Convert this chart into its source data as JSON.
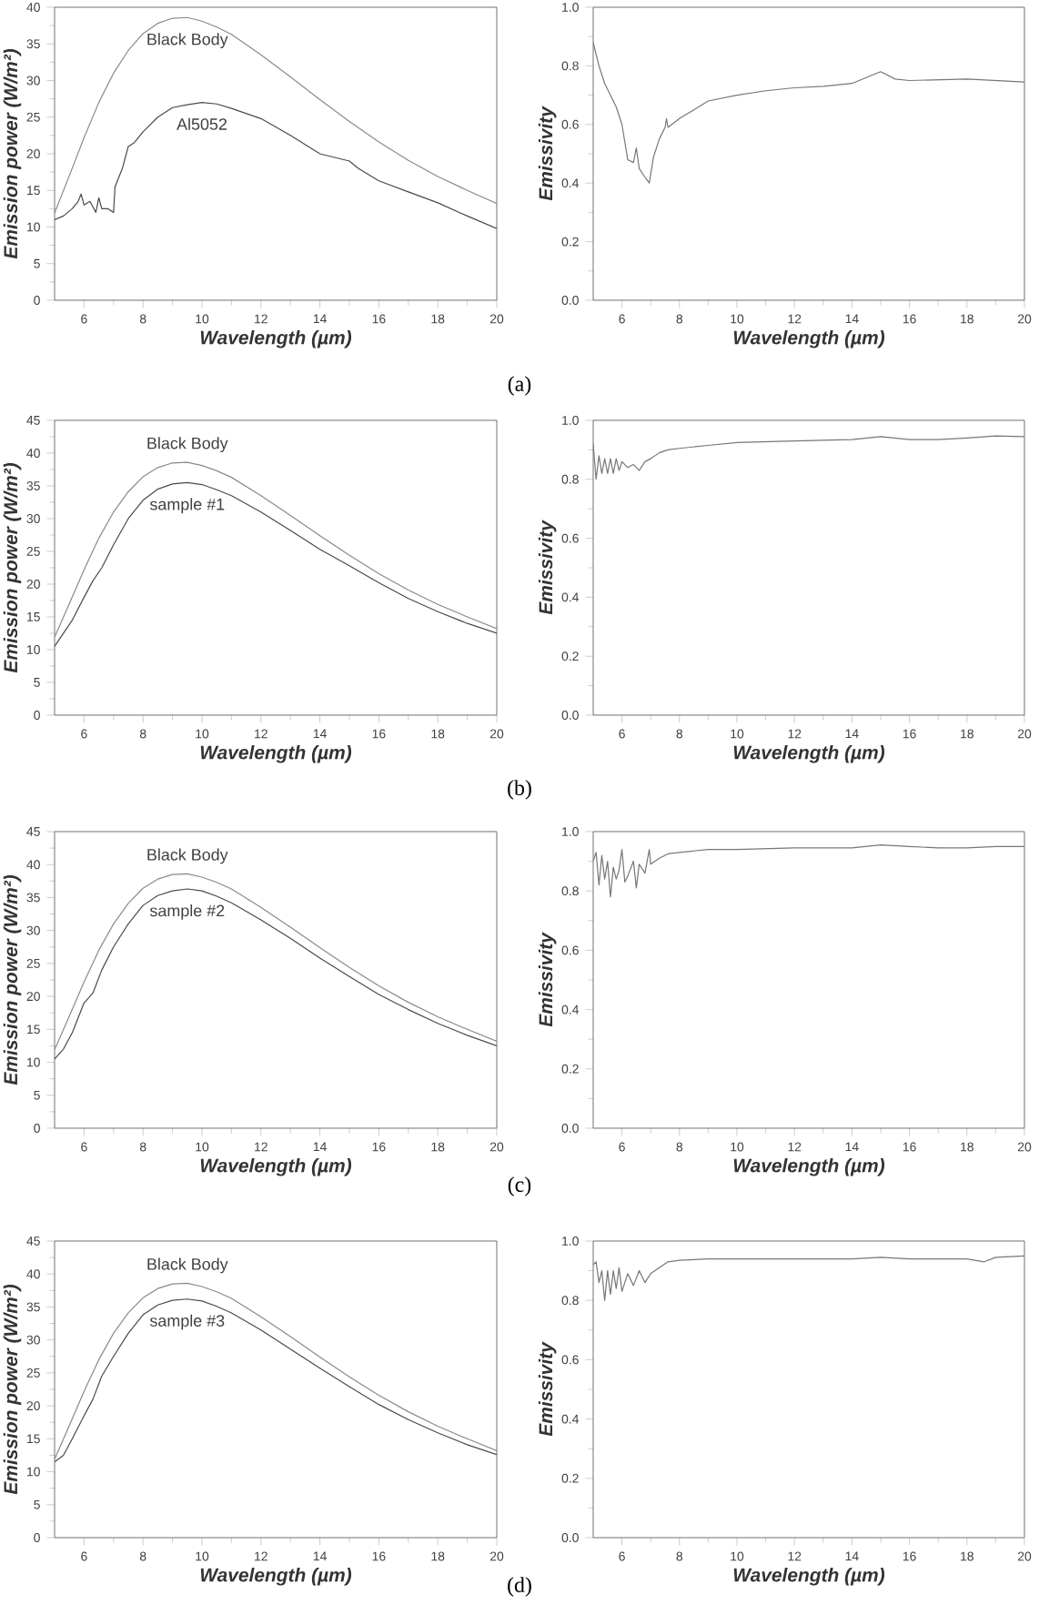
{
  "chart_data": [
    {
      "type": "line",
      "xlabel": "Wavelength (µm)",
      "ylabel": "Emission power (W/m²)",
      "xlim": [
        5,
        20
      ],
      "xticks": [
        6,
        8,
        10,
        12,
        14,
        16,
        18,
        20
      ],
      "ylim": [
        0,
        40
      ],
      "yticks": [
        0,
        5,
        10,
        15,
        20,
        25,
        30,
        35,
        40
      ],
      "annotations": [
        "(a)"
      ],
      "series": [
        {
          "name": "Black Body",
          "color": "#8a8a8a",
          "x": [
            5,
            5.5,
            6,
            6.5,
            7,
            7.5,
            8,
            8.5,
            9,
            9.5,
            10,
            10.5,
            11,
            12,
            13,
            14,
            15,
            16,
            17,
            18,
            19,
            20
          ],
          "values": [
            11.9,
            17.0,
            22.2,
            27.0,
            31.0,
            34.1,
            36.4,
            37.8,
            38.5,
            38.6,
            38.1,
            37.3,
            36.3,
            33.5,
            30.5,
            27.4,
            24.4,
            21.6,
            19.1,
            16.9,
            15.0,
            13.2
          ]
        },
        {
          "name": "Al5052",
          "color": "#4a4a4a",
          "x": [
            5,
            5.3,
            5.6,
            5.8,
            5.9,
            6,
            6.2,
            6.4,
            6.5,
            6.6,
            6.8,
            7,
            7.05,
            7.3,
            7.5,
            7.7,
            8,
            8.5,
            9,
            9.5,
            10,
            10.5,
            11,
            12,
            13,
            14,
            14.5,
            15,
            15.3,
            16,
            17,
            18,
            19,
            20
          ],
          "values": [
            11,
            11.5,
            12.5,
            13.5,
            14.5,
            13,
            13.5,
            12,
            14,
            12.5,
            12.5,
            12,
            15.5,
            18,
            21,
            21.5,
            23,
            25,
            26.3,
            26.7,
            27,
            26.8,
            26.2,
            24.8,
            22.5,
            20,
            19.5,
            19,
            18,
            16.3,
            14.8,
            13.3,
            11.5,
            9.8
          ]
        }
      ]
    },
    {
      "type": "line",
      "xlabel": "Wavelength (µm)",
      "ylabel": "Emissivity",
      "xlim": [
        5,
        20
      ],
      "xticks": [
        6,
        8,
        10,
        12,
        14,
        16,
        18,
        20
      ],
      "ylim": [
        0,
        1
      ],
      "yticks": [
        {
          "value": 0,
          "label": "0.0"
        },
        {
          "value": 0.2,
          "label": "0.2"
        },
        {
          "value": 0.4,
          "label": "0.4"
        },
        {
          "value": 0.6,
          "label": "0.6"
        },
        {
          "value": 0.8,
          "label": "0.8"
        },
        {
          "value": 1,
          "label": "1.0"
        }
      ],
      "series": [
        {
          "color": "#777777",
          "x": [
            5,
            5.2,
            5.4,
            5.6,
            5.8,
            6,
            6.2,
            6.4,
            6.5,
            6.6,
            6.8,
            6.95,
            7.1,
            7.3,
            7.5,
            7.55,
            7.6,
            8,
            8.5,
            9,
            10,
            11,
            12,
            13,
            14,
            14.5,
            15,
            15.5,
            16,
            18,
            20
          ],
          "values": [
            0.88,
            0.8,
            0.74,
            0.7,
            0.66,
            0.6,
            0.48,
            0.47,
            0.52,
            0.45,
            0.42,
            0.4,
            0.49,
            0.55,
            0.59,
            0.62,
            0.59,
            0.62,
            0.65,
            0.68,
            0.7,
            0.715,
            0.725,
            0.73,
            0.74,
            0.76,
            0.78,
            0.755,
            0.75,
            0.755,
            0.745
          ]
        }
      ]
    },
    {
      "type": "line",
      "xlabel": "Wavelength (µm)",
      "ylabel": "Emission power (W/m²)",
      "xlim": [
        5,
        20
      ],
      "xticks": [
        6,
        8,
        10,
        12,
        14,
        16,
        18,
        20
      ],
      "ylim": [
        0,
        45
      ],
      "yticks": [
        0,
        5,
        10,
        15,
        20,
        25,
        30,
        35,
        40,
        45
      ],
      "annotations": [
        "(b)"
      ],
      "series": [
        {
          "name": "Black Body",
          "color": "#8a8a8a",
          "x": [
            5,
            5.5,
            6,
            6.5,
            7,
            7.5,
            8,
            8.5,
            9,
            9.5,
            10,
            10.5,
            11,
            12,
            13,
            14,
            15,
            16,
            17,
            18,
            19,
            20
          ],
          "values": [
            11.9,
            17.0,
            22.2,
            27.0,
            31.0,
            34.1,
            36.4,
            37.8,
            38.5,
            38.6,
            38.1,
            37.3,
            36.3,
            33.5,
            30.5,
            27.4,
            24.4,
            21.6,
            19.1,
            16.9,
            15.0,
            13.2
          ]
        },
        {
          "name": "sample #1",
          "color": "#4a4a4a",
          "x": [
            5,
            5.3,
            5.6,
            6,
            6.3,
            6.6,
            7,
            7.5,
            8,
            8.5,
            9,
            9.5,
            10,
            10.5,
            11,
            12,
            13,
            14,
            15,
            16,
            17,
            18,
            19,
            20
          ],
          "values": [
            10.5,
            12.5,
            14.5,
            18.0,
            20.5,
            22.5,
            26.0,
            30.0,
            32.8,
            34.5,
            35.3,
            35.5,
            35.2,
            34.4,
            33.5,
            31.0,
            28.2,
            25.3,
            22.8,
            20.2,
            17.8,
            15.8,
            14.0,
            12.5
          ]
        }
      ]
    },
    {
      "type": "line",
      "xlabel": "Wavelength (µm)",
      "ylabel": "Emissivity",
      "xlim": [
        5,
        20
      ],
      "xticks": [
        6,
        8,
        10,
        12,
        14,
        16,
        18,
        20
      ],
      "ylim": [
        0,
        1
      ],
      "yticks": [
        {
          "value": 0,
          "label": "0.0"
        },
        {
          "value": 0.2,
          "label": "0.2"
        },
        {
          "value": 0.4,
          "label": "0.4"
        },
        {
          "value": 0.6,
          "label": "0.6"
        },
        {
          "value": 0.8,
          "label": "0.8"
        },
        {
          "value": 1,
          "label": "1.0"
        }
      ],
      "series": [
        {
          "color": "#777777",
          "x": [
            5,
            5.1,
            5.2,
            5.3,
            5.4,
            5.5,
            5.6,
            5.7,
            5.8,
            5.9,
            6,
            6.2,
            6.4,
            6.6,
            6.8,
            7,
            7.3,
            7.6,
            8,
            9,
            10,
            12,
            14,
            15,
            16,
            17,
            18,
            19,
            20
          ],
          "values": [
            0.92,
            0.8,
            0.88,
            0.82,
            0.87,
            0.82,
            0.87,
            0.82,
            0.87,
            0.83,
            0.86,
            0.84,
            0.85,
            0.83,
            0.86,
            0.87,
            0.89,
            0.9,
            0.905,
            0.915,
            0.925,
            0.93,
            0.935,
            0.945,
            0.935,
            0.935,
            0.94,
            0.947,
            0.945
          ]
        }
      ]
    },
    {
      "type": "line",
      "xlabel": "Wavelength (µm)",
      "ylabel": "Emission power (W/m²)",
      "xlim": [
        5,
        20
      ],
      "xticks": [
        6,
        8,
        10,
        12,
        14,
        16,
        18,
        20
      ],
      "ylim": [
        0,
        45
      ],
      "yticks": [
        0,
        5,
        10,
        15,
        20,
        25,
        30,
        35,
        40,
        45
      ],
      "annotations": [
        "(c)"
      ],
      "series": [
        {
          "name": "Black Body",
          "color": "#8a8a8a",
          "x": [
            5,
            5.5,
            6,
            6.5,
            7,
            7.5,
            8,
            8.5,
            9,
            9.5,
            10,
            10.5,
            11,
            12,
            13,
            14,
            15,
            16,
            17,
            18,
            19,
            20
          ],
          "values": [
            11.9,
            17.0,
            22.2,
            27.0,
            31.0,
            34.1,
            36.4,
            37.8,
            38.5,
            38.6,
            38.1,
            37.3,
            36.3,
            33.5,
            30.5,
            27.4,
            24.4,
            21.6,
            19.1,
            16.9,
            15.0,
            13.2
          ]
        },
        {
          "name": "sample #2",
          "color": "#4a4a4a",
          "x": [
            5,
            5.3,
            5.6,
            6,
            6.3,
            6.6,
            7,
            7.5,
            8,
            8.5,
            9,
            9.5,
            10,
            10.5,
            11,
            12,
            13,
            14,
            15,
            16,
            17,
            18,
            19,
            20
          ],
          "values": [
            10.5,
            12.0,
            14.5,
            19.0,
            20.5,
            24.0,
            27.5,
            31.0,
            33.8,
            35.3,
            36.0,
            36.3,
            36.0,
            35.2,
            34.2,
            31.6,
            28.8,
            25.8,
            23.0,
            20.3,
            18.0,
            15.9,
            14.1,
            12.5
          ]
        }
      ]
    },
    {
      "type": "line",
      "xlabel": "Wavelength (µm)",
      "ylabel": "Emissivity",
      "xlim": [
        5,
        20
      ],
      "xticks": [
        6,
        8,
        10,
        12,
        14,
        16,
        18,
        20
      ],
      "ylim": [
        0,
        1
      ],
      "yticks": [
        {
          "value": 0,
          "label": "0.0"
        },
        {
          "value": 0.2,
          "label": "0.2"
        },
        {
          "value": 0.4,
          "label": "0.4"
        },
        {
          "value": 0.6,
          "label": "0.6"
        },
        {
          "value": 0.8,
          "label": "0.8"
        },
        {
          "value": 1,
          "label": "1.0"
        }
      ],
      "series": [
        {
          "color": "#777777",
          "x": [
            5,
            5.1,
            5.2,
            5.3,
            5.4,
            5.5,
            5.6,
            5.7,
            5.8,
            5.9,
            6,
            6.1,
            6.2,
            6.4,
            6.5,
            6.6,
            6.8,
            6.95,
            7,
            7.3,
            7.6,
            8,
            9,
            10,
            12,
            14,
            15,
            16,
            17,
            18,
            19,
            20
          ],
          "values": [
            0.9,
            0.93,
            0.82,
            0.92,
            0.84,
            0.9,
            0.78,
            0.88,
            0.84,
            0.87,
            0.94,
            0.83,
            0.85,
            0.9,
            0.81,
            0.89,
            0.86,
            0.94,
            0.89,
            0.91,
            0.925,
            0.93,
            0.94,
            0.94,
            0.945,
            0.945,
            0.955,
            0.95,
            0.945,
            0.945,
            0.95,
            0.95
          ]
        }
      ]
    },
    {
      "type": "line",
      "xlabel": "Wavelength (µm)",
      "ylabel": "Emission power (W/m²)",
      "xlim": [
        5,
        20
      ],
      "xticks": [
        6,
        8,
        10,
        12,
        14,
        16,
        18,
        20
      ],
      "ylim": [
        0,
        45
      ],
      "yticks": [
        0,
        5,
        10,
        15,
        20,
        25,
        30,
        35,
        40,
        45
      ],
      "annotations": [
        "(d)"
      ],
      "series": [
        {
          "name": "Black Body",
          "color": "#8a8a8a",
          "x": [
            5,
            5.5,
            6,
            6.5,
            7,
            7.5,
            8,
            8.5,
            9,
            9.5,
            10,
            10.5,
            11,
            12,
            13,
            14,
            15,
            16,
            17,
            18,
            19,
            20
          ],
          "values": [
            11.9,
            17.0,
            22.2,
            27.0,
            31.0,
            34.1,
            36.4,
            37.8,
            38.5,
            38.6,
            38.1,
            37.3,
            36.3,
            33.5,
            30.5,
            27.4,
            24.4,
            21.6,
            19.1,
            16.9,
            15.0,
            13.2
          ]
        },
        {
          "name": "sample #3",
          "color": "#4a4a4a",
          "x": [
            5,
            5.3,
            5.6,
            6,
            6.3,
            6.6,
            7,
            7.5,
            8,
            8.5,
            9,
            9.5,
            10,
            10.5,
            11,
            12,
            13,
            14,
            15,
            16,
            17,
            18,
            19,
            20
          ],
          "values": [
            11.5,
            12.5,
            15.0,
            18.5,
            21.0,
            24.5,
            27.5,
            31.0,
            33.8,
            35.3,
            36.0,
            36.2,
            35.9,
            35.1,
            34.1,
            31.5,
            28.6,
            25.7,
            22.9,
            20.2,
            17.9,
            15.9,
            14.1,
            12.6
          ]
        }
      ]
    },
    {
      "type": "line",
      "xlabel": "Wavelength (µm)",
      "ylabel": "Emissivity",
      "xlim": [
        5,
        20
      ],
      "xticks": [
        6,
        8,
        10,
        12,
        14,
        16,
        18,
        20
      ],
      "ylim": [
        0,
        1
      ],
      "yticks": [
        {
          "value": 0,
          "label": "0.0"
        },
        {
          "value": 0.2,
          "label": "0.2"
        },
        {
          "value": 0.4,
          "label": "0.4"
        },
        {
          "value": 0.6,
          "label": "0.6"
        },
        {
          "value": 0.8,
          "label": "0.8"
        },
        {
          "value": 1,
          "label": "1.0"
        }
      ],
      "series": [
        {
          "color": "#777777",
          "x": [
            5,
            5.1,
            5.2,
            5.3,
            5.4,
            5.5,
            5.6,
            5.7,
            5.8,
            5.9,
            6,
            6.2,
            6.4,
            6.6,
            6.8,
            7,
            7.3,
            7.6,
            8,
            9,
            10,
            12,
            14,
            15,
            16,
            17,
            18,
            18.6,
            19,
            20
          ],
          "values": [
            0.92,
            0.93,
            0.86,
            0.9,
            0.8,
            0.9,
            0.82,
            0.9,
            0.84,
            0.91,
            0.83,
            0.89,
            0.85,
            0.9,
            0.86,
            0.89,
            0.91,
            0.93,
            0.935,
            0.94,
            0.94,
            0.94,
            0.94,
            0.945,
            0.94,
            0.94,
            0.94,
            0.93,
            0.945,
            0.95
          ]
        }
      ]
    }
  ]
}
